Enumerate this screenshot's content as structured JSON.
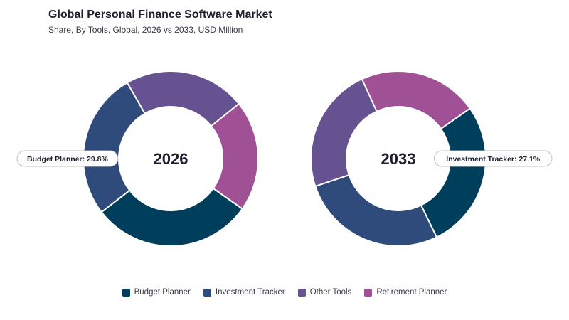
{
  "chart_data": {
    "type": "pie",
    "title": "Global Personal Finance Software Market",
    "subtitle": "Share, By Tools, Global, 2026 vs 2033, USD Million",
    "categories": [
      "Budget Planner",
      "Investment Tracker",
      "Other Tools",
      "Retirement Planner"
    ],
    "colors": [
      "#003f5c",
      "#2f4b7c",
      "#665191",
      "#a05195"
    ],
    "legend_position": "bottom",
    "charts": [
      {
        "label": "2026",
        "values": [
          29.8,
          27.2,
          22.5,
          20.5
        ],
        "callout": {
          "category": "Budget Planner",
          "text": "Budget Planner: 29.8%"
        }
      },
      {
        "label": "2033",
        "values": [
          27.5,
          27.1,
          23.3,
          22.1
        ],
        "callout": {
          "category": "Investment Tracker",
          "text": "Investment Tracker: 27.1%"
        }
      }
    ]
  }
}
